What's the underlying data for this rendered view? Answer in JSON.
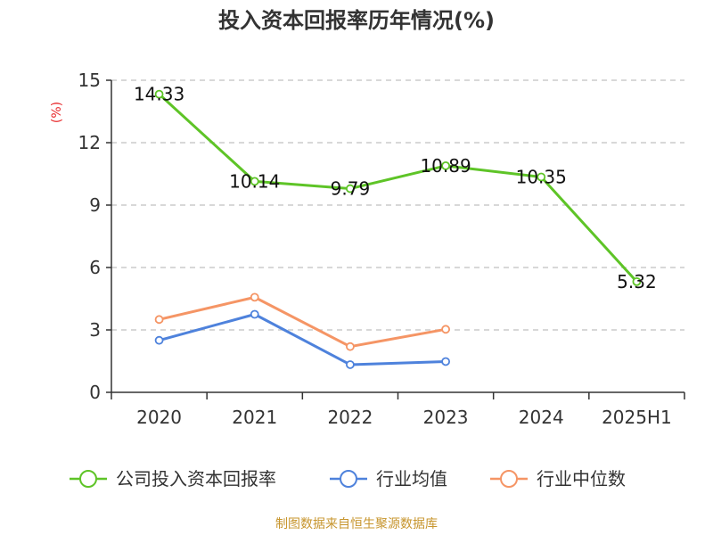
{
  "chart_data": {
    "type": "line",
    "title": "投入资本回报率历年情况(%)",
    "ylabel": "(%)",
    "xlabel": "",
    "categories": [
      "2020",
      "2021",
      "2022",
      "2023",
      "2024",
      "2025H1"
    ],
    "y_ticks": [
      "0",
      "3",
      "6",
      "9",
      "12",
      "15"
    ],
    "ylim": [
      0,
      15
    ],
    "grid": true,
    "legend_position": "bottom",
    "series": [
      {
        "name": "公司投入资本回报率",
        "color": "#5ec427",
        "values": [
          14.33,
          10.14,
          9.79,
          10.89,
          10.35,
          5.32
        ],
        "labels": [
          "14.33",
          "10.14",
          "9.79",
          "10.89",
          "10.35",
          "5.32"
        ]
      },
      {
        "name": "行业均值",
        "color": "#4e82dc",
        "values": [
          2.5,
          3.75,
          1.33,
          1.48,
          null,
          null
        ]
      },
      {
        "name": "行业中位数",
        "color": "#f59565",
        "values": [
          3.5,
          4.57,
          2.2,
          3.03,
          null,
          null
        ]
      }
    ]
  },
  "source": "制图数据来自恒生聚源数据库"
}
